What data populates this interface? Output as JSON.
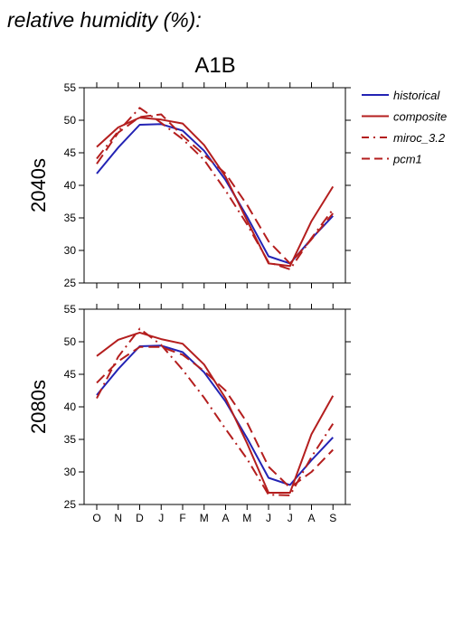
{
  "header": "relative humidity (%):",
  "scenario": "A1B",
  "legend": [
    {
      "name": "historical",
      "color": "#2323b4",
      "dash": "solid"
    },
    {
      "name": "composite",
      "color": "#b41e1e",
      "dash": "solid"
    },
    {
      "name": "miroc_3.2",
      "color": "#b41e1e",
      "dash": "dashdot"
    },
    {
      "name": "pcm1",
      "color": "#b41e1e",
      "dash": "dashed"
    }
  ],
  "chart_data": [
    {
      "type": "line",
      "title": "A1B",
      "ylabel": "2040s",
      "categories": [
        "O",
        "N",
        "D",
        "J",
        "F",
        "M",
        "A",
        "M",
        "J",
        "J",
        "A",
        "S"
      ],
      "ylim": [
        25,
        55
      ],
      "yticks": [
        25,
        30,
        35,
        40,
        45,
        50,
        55
      ],
      "series": [
        {
          "name": "historical",
          "values": [
            41.8,
            45.8,
            49.3,
            49.4,
            48.4,
            45.3,
            40.8,
            35.2,
            29.1,
            28.0,
            31.8,
            35.3
          ]
        },
        {
          "name": "composite",
          "values": [
            45.9,
            48.9,
            50.4,
            50.1,
            49.5,
            46.2,
            41.3,
            34.6,
            28.0,
            27.6,
            34.5,
            39.8
          ]
        },
        {
          "name": "miroc_3.2",
          "values": [
            44.1,
            48.3,
            51.9,
            49.6,
            47.1,
            43.9,
            39.2,
            34.0,
            28.2,
            27.1,
            31.9,
            36.3
          ]
        },
        {
          "name": "pcm1",
          "values": [
            43.3,
            48.1,
            50.5,
            50.9,
            47.6,
            44.7,
            41.8,
            37.0,
            31.4,
            28.0,
            31.7,
            35.7
          ]
        }
      ]
    },
    {
      "type": "line",
      "ylabel": "2080s",
      "categories": [
        "O",
        "N",
        "D",
        "J",
        "F",
        "M",
        "A",
        "M",
        "J",
        "J",
        "A",
        "S"
      ],
      "ylim": [
        25,
        55
      ],
      "yticks": [
        25,
        30,
        35,
        40,
        45,
        50,
        55
      ],
      "series": [
        {
          "name": "historical",
          "values": [
            41.8,
            45.8,
            49.3,
            49.4,
            48.4,
            45.3,
            40.8,
            35.2,
            29.1,
            28.0,
            31.8,
            35.3
          ]
        },
        {
          "name": "composite",
          "values": [
            47.8,
            50.3,
            51.4,
            50.4,
            49.7,
            46.5,
            41.3,
            34.4,
            26.8,
            26.8,
            35.8,
            41.7
          ]
        },
        {
          "name": "miroc_3.2",
          "values": [
            41.3,
            47.7,
            52.0,
            49.5,
            45.7,
            41.4,
            36.6,
            32.0,
            26.5,
            26.4,
            32.3,
            37.4
          ]
        },
        {
          "name": "pcm1",
          "values": [
            43.7,
            47.0,
            49.2,
            49.2,
            48.0,
            45.5,
            42.5,
            37.6,
            30.8,
            27.6,
            30.0,
            33.4
          ]
        }
      ]
    }
  ]
}
